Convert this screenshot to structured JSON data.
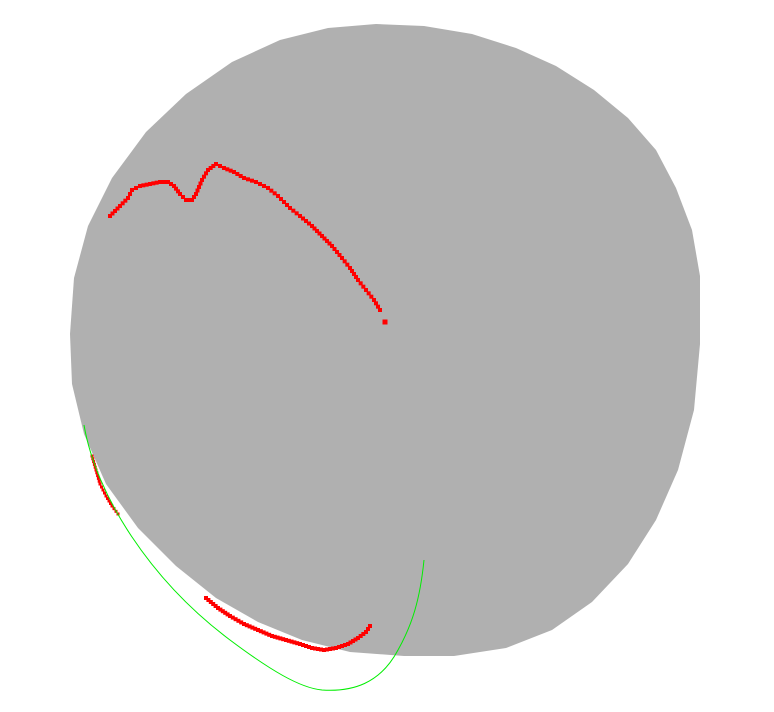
{
  "scene": {
    "background_color": "#ffffff",
    "sphere_color": "#b0b0b0",
    "track_color": "#ff0000",
    "orbit_color": "#00ee00"
  }
}
